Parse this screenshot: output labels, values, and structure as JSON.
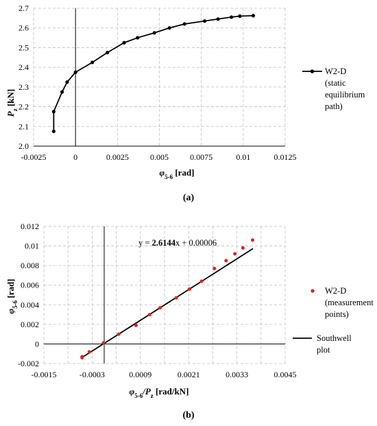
{
  "chart_data": [
    {
      "type": "line",
      "caption": "(a)",
      "xlabel_sym": "φ",
      "xlabel_sub": "5-6",
      "xlabel_unit": " [rad]",
      "ylabel_sym": "P",
      "ylabel_sub": "z",
      "ylabel_unit": " [kN]",
      "xlim": [
        -0.0025,
        0.0125
      ],
      "ylim": [
        2.0,
        2.7
      ],
      "xticks": [
        -0.0025,
        0,
        0.0025,
        0.005,
        0.0075,
        0.01,
        0.0125
      ],
      "xtick_labels": [
        "-0.0025",
        "0",
        "0.0025",
        "0.005",
        "0.0075",
        "0.01",
        "0.0125"
      ],
      "yticks": [
        2.0,
        2.1,
        2.2,
        2.3,
        2.4,
        2.5,
        2.6,
        2.7
      ],
      "ytick_labels": [
        "2.0",
        "2.1",
        "2.2",
        "2.3",
        "2.4",
        "2.5",
        "2.6",
        "2.7"
      ],
      "grid": true,
      "legend_position": "right",
      "series": [
        {
          "name": "W2-D",
          "legend_lines": [
            "W2-D",
            "(static",
            "equilibrium",
            "path)"
          ],
          "color": "#000000",
          "x": [
            -0.0013,
            -0.0013,
            -0.0008,
            -0.0005,
            0.0,
            0.001,
            0.0019,
            0.0029,
            0.0037,
            0.0047,
            0.0056,
            0.0065,
            0.0077,
            0.0085,
            0.0093,
            0.0098,
            0.0106
          ],
          "y": [
            2.075,
            2.175,
            2.275,
            2.325,
            2.375,
            2.425,
            2.475,
            2.525,
            2.55,
            2.575,
            2.6,
            2.62,
            2.635,
            2.645,
            2.655,
            2.66,
            2.662
          ]
        }
      ]
    },
    {
      "type": "scatter",
      "caption": "(b)",
      "xlabel_sym": "φ",
      "xlabel_sub": "5-6",
      "xlabel_mid": "/P",
      "xlabel_sub2": "z",
      "xlabel_unit": " [rad/kN]",
      "ylabel_sym": "φ",
      "ylabel_sub": "5-6",
      "ylabel_unit": " [rad]",
      "xlim": [
        -0.0015,
        0.0045
      ],
      "ylim": [
        -0.002,
        0.012
      ],
      "xticks": [
        -0.0015,
        -0.0003,
        0.0009,
        0.0021,
        0.0033,
        0.0045
      ],
      "xtick_labels": [
        "-0.0015",
        "-0.0003",
        "0.0009",
        "0.0021",
        "0.0033",
        "0.0045"
      ],
      "xgrid": [
        -0.0015,
        -0.0009,
        -0.0003,
        0.0003,
        0.0009,
        0.0015,
        0.0021,
        0.0027,
        0.0033,
        0.0039,
        0.0045
      ],
      "yticks": [
        -0.002,
        0,
        0.002,
        0.004,
        0.006,
        0.008,
        0.01,
        0.012
      ],
      "ytick_labels": [
        "-0.002",
        "0",
        "0.002",
        "0.004",
        "0.006",
        "0.008",
        "0.01",
        "0.012"
      ],
      "grid": true,
      "legend_position": "right",
      "equation": {
        "prefix": "y = ",
        "slope": "2.6144",
        "suffix": "x + 0.00006"
      },
      "series": [
        {
          "name": "W2-D",
          "legend_lines": [
            "W2-D",
            "(measurement",
            "points)"
          ],
          "color": "#e0201b",
          "x": [
            -0.00055,
            -0.00055,
            -0.00037,
            -2e-05,
            0.00036,
            0.00079,
            0.00113,
            0.00139,
            0.00179,
            0.00212,
            0.00242,
            0.00274,
            0.00303,
            0.00325,
            0.00345,
            0.00369
          ],
          "y": [
            -0.0014,
            -0.0013,
            -0.0008,
            0.0001,
            0.001,
            0.0019,
            0.003,
            0.0037,
            0.0047,
            0.0056,
            0.0064,
            0.0077,
            0.0085,
            0.0092,
            0.0098,
            0.0106
          ]
        },
        {
          "name": "Southwell plot",
          "legend_lines": [
            "Southwell",
            "plot"
          ],
          "color": "#000000",
          "slope": 2.6144,
          "intercept": 6e-05,
          "x_range": [
            -0.00058,
            0.0037
          ]
        }
      ]
    }
  ]
}
